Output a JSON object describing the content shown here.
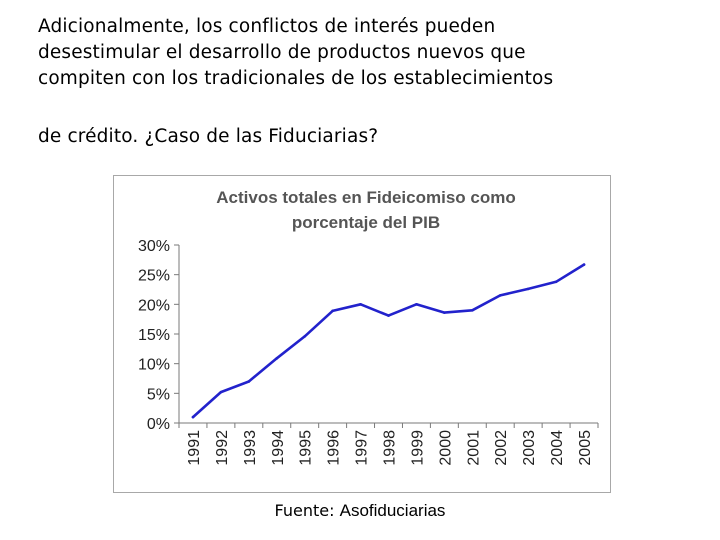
{
  "heading": {
    "lines": [
      "Adicionalmente, los conflictos de interés pueden",
      "desestimular el desarrollo de productos nuevos que",
      "compiten con los tradicionales de los establecimientos",
      "de crédito. ¿Caso de las Fiduciarias?"
    ]
  },
  "source": {
    "label": "Fuente:",
    "value": "Asofiduciarias"
  },
  "chart_data": {
    "type": "line",
    "title_lines": [
      "Activos totales en Fideicomiso como",
      "porcentaje del PIB"
    ],
    "xlabel": "",
    "ylabel": "",
    "x": [
      "1991",
      "1992",
      "1993",
      "1994",
      "1995",
      "1996",
      "1997",
      "1998",
      "1999",
      "2000",
      "2001",
      "2002",
      "2003",
      "2004",
      "2005"
    ],
    "series": [
      {
        "values": [
          1.0,
          5.2,
          7.0,
          10.9,
          14.6,
          18.9,
          20.0,
          18.1,
          20.0,
          18.6,
          19.0,
          21.5,
          22.6,
          23.8,
          26.7
        ]
      }
    ],
    "ylim": [
      0,
      30
    ],
    "yticks": [
      0,
      5,
      10,
      15,
      20,
      25,
      30
    ],
    "ytick_labels": [
      "0%",
      "5%",
      "10%",
      "15%",
      "20%",
      "25%",
      "30%"
    ],
    "grid": false,
    "legend": "none",
    "line_color": "#2222cc"
  }
}
